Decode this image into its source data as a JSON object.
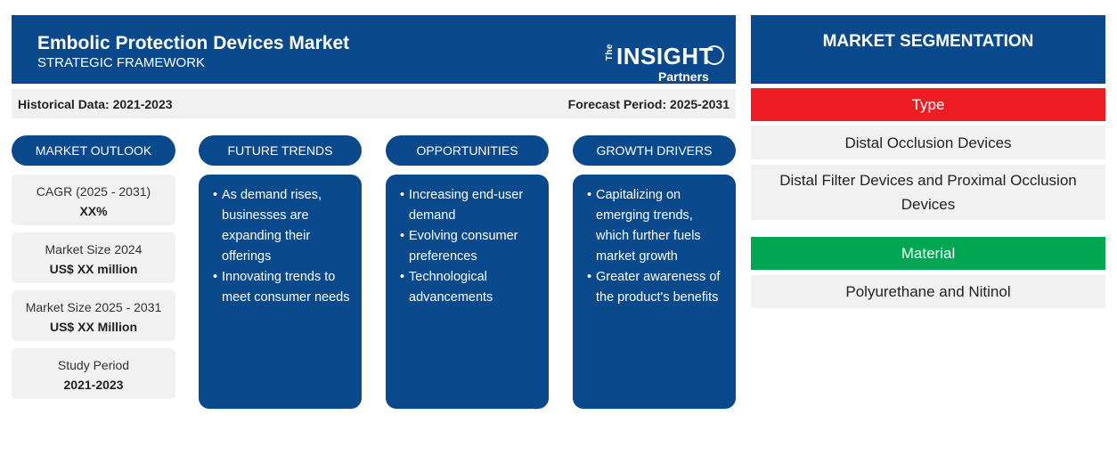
{
  "header": {
    "title": "Embolic Protection Devices Market",
    "subtitle": "STRATEGIC FRAMEWORK",
    "logo": {
      "the": "The",
      "main": "INSIGHT",
      "partners": "Partners"
    }
  },
  "periods": {
    "historical": "Historical Data: 2021-2023",
    "forecast": "Forecast Period: 2025-2031"
  },
  "columns": {
    "outlook": "MARKET OUTLOOK",
    "trends": "FUTURE TRENDS",
    "opportunities": "OPPORTUNITIES",
    "drivers": "GROWTH DRIVERS"
  },
  "outlook": [
    {
      "label": "CAGR (2025 - 2031)",
      "value": "XX%"
    },
    {
      "label": "Market Size 2024",
      "value": "US$ XX million"
    },
    {
      "label": "Market Size 2025 - 2031",
      "value": "US$ XX Million"
    },
    {
      "label": "Study Period",
      "value": "2021-2023"
    }
  ],
  "trends": {
    "items": [
      "As demand rises, businesses are expanding their offerings",
      "Innovating trends to meet consumer needs"
    ]
  },
  "opportunities": {
    "items": [
      "Increasing end-user demand",
      "Evolving consumer preferences",
      "Technological advancements"
    ]
  },
  "drivers": {
    "items": [
      "Capitalizing on emerging trends, which further fuels market growth",
      "Greater awareness of the product's benefits"
    ]
  },
  "segmentation": {
    "title": "MARKET SEGMENTATION",
    "type": {
      "label": "Type",
      "color": "#ee1d23",
      "items": [
        "Distal Occlusion Devices",
        "Distal Filter Devices and Proximal Occlusion Devices"
      ]
    },
    "material": {
      "label": "Material",
      "color": "#00a651",
      "items": [
        "Polyurethane and Nitinol"
      ]
    }
  },
  "colors": {
    "primary": "#0a4a8c",
    "panel": "#f1f1f1"
  }
}
